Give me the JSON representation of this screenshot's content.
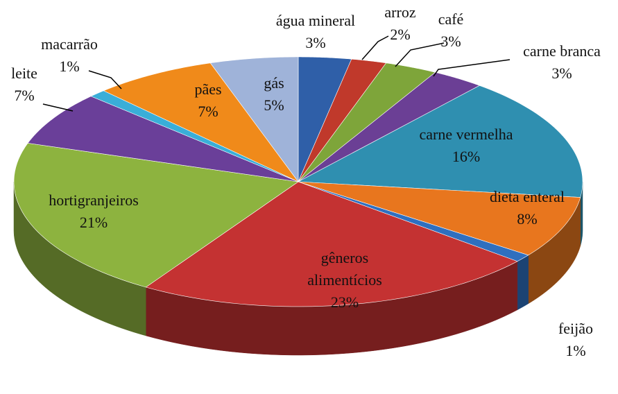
{
  "chart_data": {
    "type": "pie",
    "categories": [
      "água mineral",
      "arroz",
      "café",
      "carne branca",
      "carne vermelha",
      "dieta enteral",
      "feijão",
      "gêneros alimentícios",
      "hortigranjeiros",
      "leite",
      "macarrão",
      "pães",
      "gás"
    ],
    "values": [
      3,
      2,
      3,
      3,
      16,
      8,
      1,
      23,
      21,
      7,
      1,
      7,
      5
    ],
    "value_labels": [
      "3%",
      "2%",
      "3%",
      "3%",
      "16%",
      "8%",
      "1%",
      "23%",
      "21%",
      "7%",
      "1%",
      "7%",
      "5%"
    ],
    "colors": [
      "#2f5fa8",
      "#c0392b",
      "#7ea53a",
      "#6b3f95",
      "#2f8fb0",
      "#e8761e",
      "#2f6fbf",
      "#c43232",
      "#8db33f",
      "#6a3f99",
      "#3aaed8",
      "#f08a1a",
      "#9fb3d9"
    ]
  }
}
